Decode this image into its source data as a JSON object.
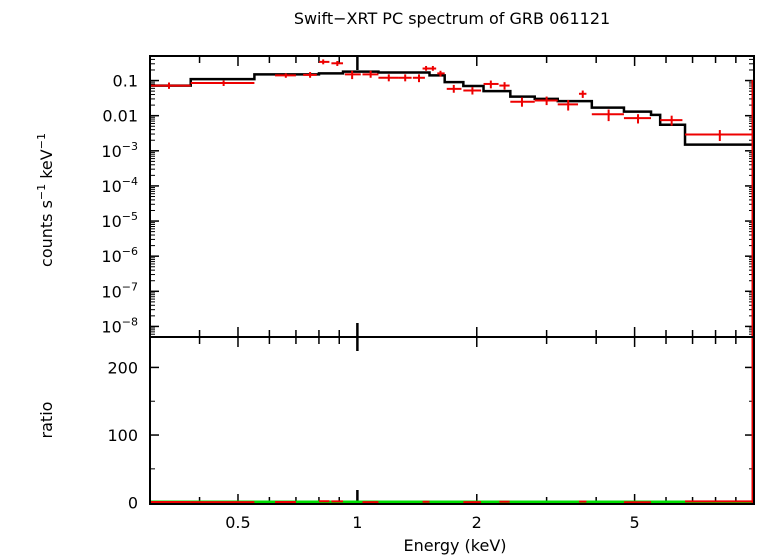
{
  "chart_data": [
    {
      "type": "line",
      "panel": "spectrum",
      "title": "Swift−XRT PC spectrum of GRB 061121",
      "ylabel_main": "counts s",
      "ylabel_exp1": "−1",
      "ylabel_mid": " keV",
      "ylabel_exp2": "−1",
      "y_scale": "log",
      "x_scale": "log",
      "xlim": [
        0.3,
        10
      ],
      "ylim": [
        5e-09,
        0.5
      ],
      "y_ticks": [
        {
          "value": 0.1,
          "base": "0.1",
          "exp": ""
        },
        {
          "value": 0.01,
          "base": "0.01",
          "exp": ""
        },
        {
          "value": 0.001,
          "base": "10",
          "exp": "−3"
        },
        {
          "value": 0.0001,
          "base": "10",
          "exp": "−4"
        },
        {
          "value": 1e-05,
          "base": "10",
          "exp": "−5"
        },
        {
          "value": 1e-06,
          "base": "10",
          "exp": "−6"
        },
        {
          "value": 1e-07,
          "base": "10",
          "exp": "−7"
        },
        {
          "value": 1e-08,
          "base": "10",
          "exp": "−8"
        }
      ],
      "series": [
        {
          "color": "#ee0000",
          "style": "errorbars",
          "points": [
            {
              "x": 0.335,
              "xlo": 0.3,
              "xhi": 0.38,
              "y": 0.072,
              "ylo": 0.058,
              "yhi": 0.088
            },
            {
              "x": 0.46,
              "xlo": 0.38,
              "xhi": 0.55,
              "y": 0.085,
              "ylo": 0.07,
              "yhi": 0.1
            },
            {
              "x": 0.66,
              "xlo": 0.62,
              "xhi": 0.7,
              "y": 0.14,
              "ylo": 0.12,
              "yhi": 0.16
            },
            {
              "x": 0.76,
              "xlo": 0.73,
              "xhi": 0.79,
              "y": 0.145,
              "ylo": 0.12,
              "yhi": 0.175
            },
            {
              "x": 0.82,
              "xlo": 0.8,
              "xhi": 0.85,
              "y": 0.34,
              "ylo": 0.29,
              "yhi": 0.4
            },
            {
              "x": 0.89,
              "xlo": 0.86,
              "xhi": 0.92,
              "y": 0.31,
              "ylo": 0.26,
              "yhi": 0.36
            },
            {
              "x": 0.97,
              "xlo": 0.93,
              "xhi": 1.02,
              "y": 0.15,
              "ylo": 0.11,
              "yhi": 0.19
            },
            {
              "x": 1.08,
              "xlo": 1.03,
              "xhi": 1.13,
              "y": 0.15,
              "ylo": 0.12,
              "yhi": 0.19
            },
            {
              "x": 1.2,
              "xlo": 1.13,
              "xhi": 1.27,
              "y": 0.12,
              "ylo": 0.095,
              "yhi": 0.15
            },
            {
              "x": 1.32,
              "xlo": 1.27,
              "xhi": 1.37,
              "y": 0.12,
              "ylo": 0.095,
              "yhi": 0.15
            },
            {
              "x": 1.43,
              "xlo": 1.38,
              "xhi": 1.48,
              "y": 0.12,
              "ylo": 0.09,
              "yhi": 0.15
            },
            {
              "x": 1.49,
              "xlo": 1.46,
              "xhi": 1.52,
              "y": 0.22,
              "ylo": 0.19,
              "yhi": 0.26
            },
            {
              "x": 1.55,
              "xlo": 1.52,
              "xhi": 1.58,
              "y": 0.22,
              "ylo": 0.19,
              "yhi": 0.26
            },
            {
              "x": 1.62,
              "xlo": 1.59,
              "xhi": 1.66,
              "y": 0.16,
              "ylo": 0.13,
              "yhi": 0.19
            },
            {
              "x": 1.75,
              "xlo": 1.68,
              "xhi": 1.83,
              "y": 0.058,
              "ylo": 0.045,
              "yhi": 0.075
            },
            {
              "x": 1.95,
              "xlo": 1.85,
              "xhi": 2.05,
              "y": 0.052,
              "ylo": 0.04,
              "yhi": 0.065
            },
            {
              "x": 2.17,
              "xlo": 2.08,
              "xhi": 2.27,
              "y": 0.08,
              "ylo": 0.06,
              "yhi": 0.1
            },
            {
              "x": 2.35,
              "xlo": 2.28,
              "xhi": 2.42,
              "y": 0.072,
              "ylo": 0.055,
              "yhi": 0.09
            },
            {
              "x": 2.6,
              "xlo": 2.43,
              "xhi": 2.8,
              "y": 0.025,
              "ylo": 0.018,
              "yhi": 0.033
            },
            {
              "x": 3.0,
              "xlo": 2.8,
              "xhi": 3.2,
              "y": 0.027,
              "ylo": 0.02,
              "yhi": 0.035
            },
            {
              "x": 3.4,
              "xlo": 3.2,
              "xhi": 3.6,
              "y": 0.021,
              "ylo": 0.014,
              "yhi": 0.028
            },
            {
              "x": 3.7,
              "xlo": 3.62,
              "xhi": 3.78,
              "y": 0.042,
              "ylo": 0.032,
              "yhi": 0.052
            },
            {
              "x": 4.3,
              "xlo": 3.9,
              "xhi": 4.7,
              "y": 0.011,
              "ylo": 0.007,
              "yhi": 0.015
            },
            {
              "x": 5.1,
              "xlo": 4.7,
              "xhi": 5.5,
              "y": 0.0085,
              "ylo": 0.006,
              "yhi": 0.011
            },
            {
              "x": 6.2,
              "xlo": 5.8,
              "xhi": 6.6,
              "y": 0.0075,
              "ylo": 0.0052,
              "yhi": 0.01
            },
            {
              "x": 8.2,
              "xlo": 6.7,
              "xhi": 10,
              "y": 0.0029,
              "ylo": 0.0019,
              "yhi": 0.0039
            }
          ]
        },
        {
          "color": "#000000",
          "style": "step",
          "points": [
            {
              "xlo": 0.3,
              "xhi": 0.38,
              "y": 0.072
            },
            {
              "xlo": 0.38,
              "xhi": 0.55,
              "y": 0.11
            },
            {
              "xlo": 0.55,
              "xhi": 0.8,
              "y": 0.15
            },
            {
              "xlo": 0.8,
              "xhi": 0.92,
              "y": 0.16
            },
            {
              "xlo": 0.92,
              "xhi": 1.02,
              "y": 0.18
            },
            {
              "xlo": 1.02,
              "xhi": 1.13,
              "y": 0.18
            },
            {
              "xlo": 1.13,
              "xhi": 1.27,
              "y": 0.17
            },
            {
              "xlo": 1.27,
              "xhi": 1.38,
              "y": 0.17
            },
            {
              "xlo": 1.38,
              "xhi": 1.52,
              "y": 0.17
            },
            {
              "xlo": 1.52,
              "xhi": 1.66,
              "y": 0.14
            },
            {
              "xlo": 1.66,
              "xhi": 1.85,
              "y": 0.09
            },
            {
              "xlo": 1.85,
              "xhi": 2.08,
              "y": 0.07
            },
            {
              "xlo": 2.08,
              "xhi": 2.43,
              "y": 0.05
            },
            {
              "xlo": 2.43,
              "xhi": 2.8,
              "y": 0.035
            },
            {
              "xlo": 2.8,
              "xhi": 3.2,
              "y": 0.03
            },
            {
              "xlo": 3.2,
              "xhi": 3.9,
              "y": 0.026
            },
            {
              "xlo": 3.9,
              "xhi": 4.7,
              "y": 0.017
            },
            {
              "xlo": 4.7,
              "xhi": 5.5,
              "y": 0.013
            },
            {
              "xlo": 5.5,
              "xhi": 5.8,
              "y": 0.0105
            },
            {
              "xlo": 5.8,
              "xhi": 6.7,
              "y": 0.0055
            },
            {
              "xlo": 6.7,
              "xhi": 10,
              "y": 0.0015
            }
          ]
        }
      ]
    },
    {
      "type": "scatter",
      "panel": "ratio",
      "ylabel": "ratio",
      "xlabel": "Energy (keV)",
      "x_scale": "log",
      "xlim": [
        0.3,
        10
      ],
      "ylim": [
        -2,
        245
      ],
      "y_ticks": [
        {
          "value": 0,
          "label": "0"
        },
        {
          "value": 100,
          "label": "100"
        },
        {
          "value": 200,
          "label": "200"
        }
      ],
      "x_ticks": [
        {
          "value": 0.5,
          "label": "0.5"
        },
        {
          "value": 1,
          "label": "1"
        },
        {
          "value": 2,
          "label": "2"
        },
        {
          "value": 5,
          "label": "5"
        }
      ],
      "reference_line": {
        "y": 1,
        "color": "#00dd00"
      },
      "series": [
        {
          "color": "#ee0000",
          "style": "errorbars",
          "points": [
            {
              "x": 0.335,
              "xlo": 0.3,
              "xhi": 0.38,
              "y": 1
            },
            {
              "x": 0.46,
              "xlo": 0.38,
              "xhi": 0.55,
              "y": 0.8
            },
            {
              "x": 0.66,
              "xlo": 0.62,
              "xhi": 0.7,
              "y": 0.9
            },
            {
              "x": 0.82,
              "xlo": 0.8,
              "xhi": 0.85,
              "y": 2.1
            },
            {
              "x": 0.89,
              "xlo": 0.86,
              "xhi": 0.92,
              "y": 1.9
            },
            {
              "x": 1.08,
              "xlo": 1.03,
              "xhi": 1.13,
              "y": 0.85
            },
            {
              "x": 1.49,
              "xlo": 1.46,
              "xhi": 1.52,
              "y": 1.3
            },
            {
              "x": 1.95,
              "xlo": 1.85,
              "xhi": 2.05,
              "y": 0.75
            },
            {
              "x": 2.35,
              "xlo": 2.28,
              "xhi": 2.42,
              "y": 1.4
            },
            {
              "x": 3.7,
              "xlo": 3.62,
              "xhi": 3.78,
              "y": 1.6
            },
            {
              "x": 5.1,
              "xlo": 4.7,
              "xhi": 5.5,
              "y": 0.65
            },
            {
              "x": 8.2,
              "xlo": 6.7,
              "xhi": 10,
              "y": 1.9
            }
          ]
        }
      ]
    }
  ]
}
